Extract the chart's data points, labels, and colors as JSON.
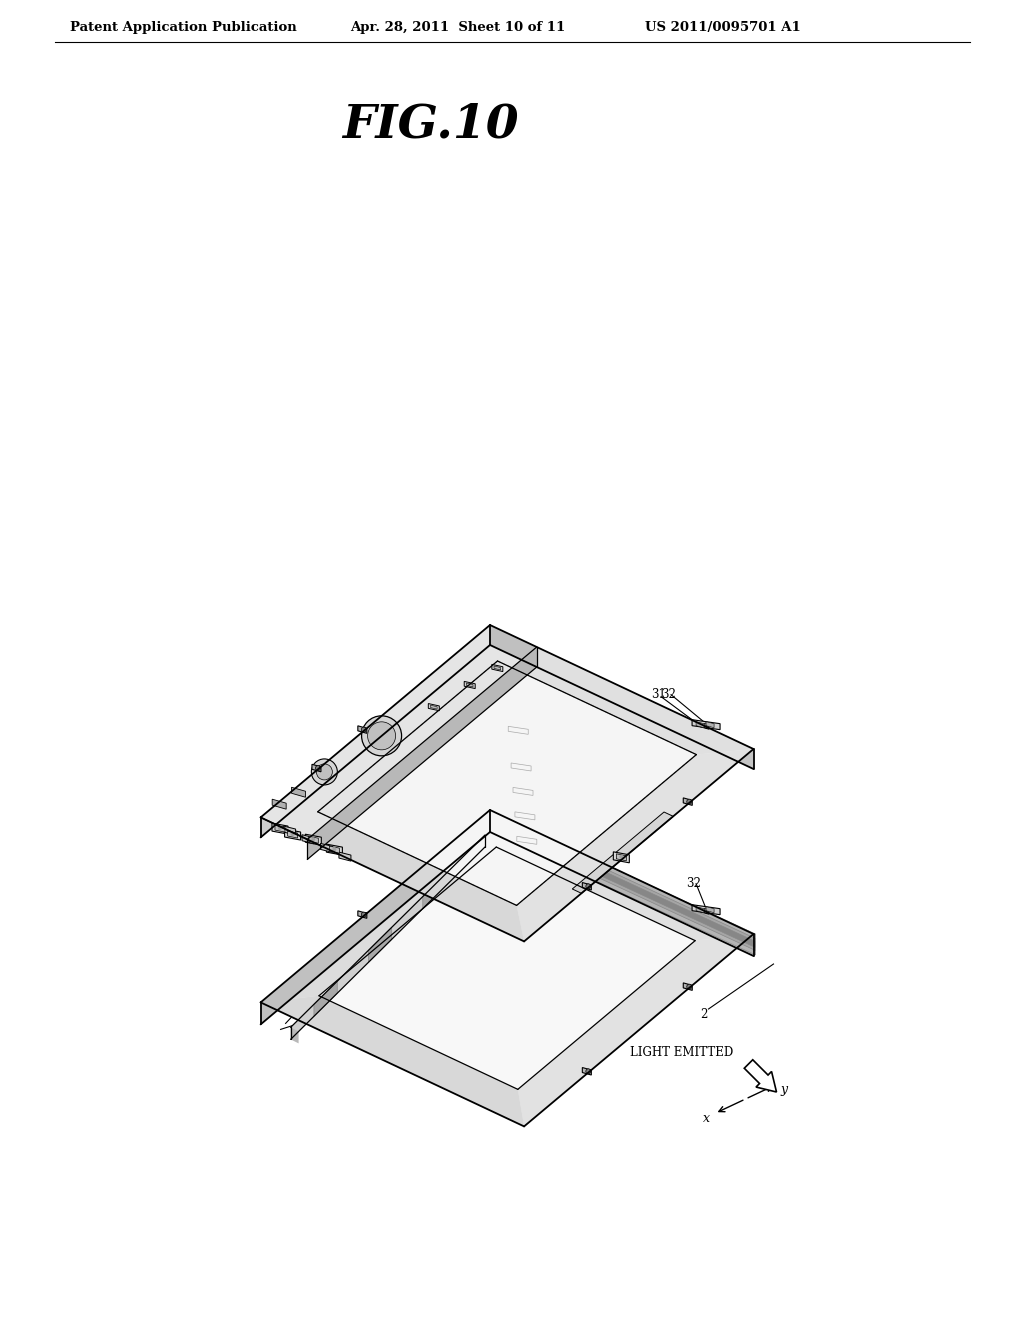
{
  "title": "FIG.10",
  "header_left": "Patent Application Publication",
  "header_mid": "Apr. 28, 2011  Sheet 10 of 11",
  "header_right": "US 2011/0095701 A1",
  "bg_color": "#ffffff",
  "lc": "#000000",
  "fig_width": 10.24,
  "fig_height": 13.2,
  "dpi": 100
}
